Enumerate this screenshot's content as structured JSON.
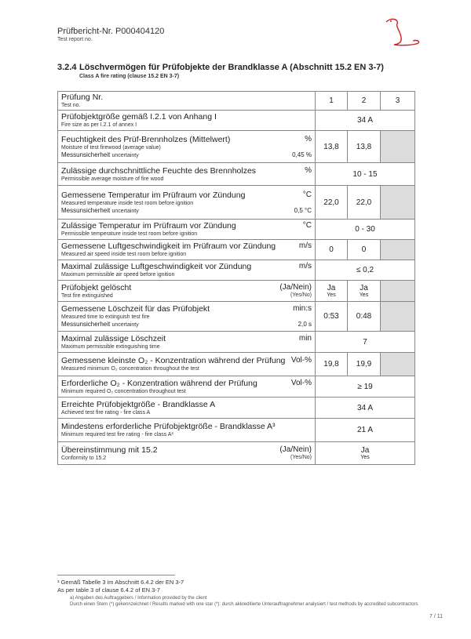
{
  "header": {
    "report_no": "Prüfbericht-Nr. P000404120",
    "report_no_en": "Test report no."
  },
  "section": {
    "number": "3.2.4",
    "title": "Löschvermögen für Prüfobjekte der Brandklasse A (Abschnitt 15.2 EN 3-7)",
    "subtitle": "Class A fire rating (clause 15.2 EN 3-7)"
  },
  "table": {
    "header": {
      "de": "Prüfung Nr.",
      "en": "Test no.",
      "cols": [
        "1",
        "2",
        "3"
      ]
    },
    "rows": [
      {
        "de": "Prüfobjektgröße gemäß I.2.1 von Anhang I",
        "en": "Fire size as per I.2.1 of annex I",
        "unit": "",
        "span": "34 A"
      },
      {
        "de": "Feuchtigkeit des Prüf-Brennholzes (Mittelwert)",
        "en": "Moisture of test firewood (average value)",
        "unit": "%",
        "unc_de": "Messunsicherheit",
        "unc_en": "uncertainty",
        "unc_val": "0,45 %",
        "v": [
          "13,8",
          "13,8"
        ]
      },
      {
        "de": "Zulässige durchschnittliche Feuchte des Brennholzes",
        "en": "Permissible average moisture of fire wood",
        "unit": "%",
        "span": "10 - 15"
      },
      {
        "de": "Gemessene Temperatur im Prüfraum vor Zündung",
        "en": "Measured temperature inside test room before ignition",
        "unit": "°C",
        "unc_de": "Messunsicherheit",
        "unc_en": "uncertainty",
        "unc_val": "0,5 °C",
        "v": [
          "22,0",
          "22,0"
        ]
      },
      {
        "de": "Zulässige Temperatur im Prüfraum vor Zündung",
        "en": "Permissible temperature inside test room before ignition",
        "unit": "°C",
        "span": "0 - 30"
      },
      {
        "de": "Gemessene Luftgeschwindigkeit im Prüfraum vor Zündung",
        "en": "Measured air speed inside test room before ignition",
        "unit": "m/s",
        "v": [
          "0",
          "0"
        ]
      },
      {
        "de": "Maximal zulässige Luftgeschwindigkeit vor Zündung",
        "en": "Maximum permissible air speed before ignition",
        "unit": "m/s",
        "span": "≤ 0,2"
      },
      {
        "de": "Prüfobjekt gelöscht",
        "en": "Test fire extinguished",
        "unit": "(Ja/Nein)",
        "unit_en": "(Yes/No)",
        "v": [
          "Ja",
          "Ja"
        ],
        "v_en": [
          "Yes",
          "Yes"
        ]
      },
      {
        "de": "Gemessene Löschzeit für das Prüfobjekt",
        "en": "Measured time to extinguish test fire",
        "unit": "min:s",
        "unc_de": "Messunsicherheit",
        "unc_en": "uncertainty",
        "unc_val": "2,0 s",
        "v": [
          "0:53",
          "0:48"
        ]
      },
      {
        "de": "Maximal zulässige Löschzeit",
        "en": "Maximum permissible extinguishing time",
        "unit": "min",
        "span": "7"
      },
      {
        "de": "Gemessene kleinste O₂ - Konzentration während der Prüfung",
        "en": "Measured minimum O₂ concentration throughout the test",
        "unit": "Vol-%",
        "v": [
          "19,8",
          "19,9"
        ]
      },
      {
        "de": "Erforderliche O₂ - Konzentration während der Prüfung",
        "en": "Minimum required O₂ concentration throughout test",
        "unit": "Vol-%",
        "span": "≥ 19"
      },
      {
        "de": "Erreichte Prüfobjektgröße - Brandklasse A",
        "en": "Achieved test fire rating - fire class A",
        "unit": "",
        "span": "34 A"
      },
      {
        "de": "Mindestens erforderliche Prüfobjektgröße - Brandklasse A³",
        "en": "Minimum required test fire rating - fire class A³",
        "unit": "",
        "span": "21 A"
      },
      {
        "de": "Übereinstimmung mit 15.2",
        "en": "Conformity to 15.2",
        "unit": "(Ja/Nein)",
        "unit_en": "(Yes/No)",
        "span": "Ja",
        "span_en": "Yes"
      }
    ]
  },
  "footnotes": {
    "fn3_de": "³ Gemäß Tabelle 3 im Abschnitt 6.4.2 der EN 3-7",
    "fn3_en": "As per table 3 of clause 6.4.2 of EN 3-7",
    "note_a": "a) Angaben des Auftraggebers / Information provided by the client",
    "note_star": "Durch einen Stern (*) gekennzeichnet / Results marked with one star (*): durch akkreditierte Unterauftragnehmer analysiert / test methods by accredited subcontractors"
  },
  "page": "7 / 11",
  "colors": {
    "gray_cell": "#dcdcdc",
    "logo": "#d22020"
  }
}
